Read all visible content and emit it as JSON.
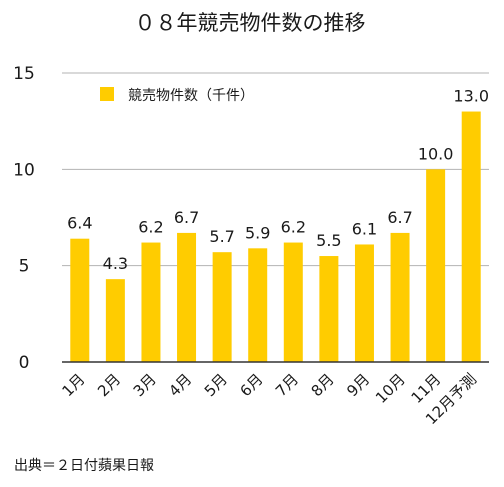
{
  "colors": {
    "bar": "#FFCC00",
    "grid": "#b3b3b3",
    "axis": "#333333",
    "text": "#1a1a1a"
  },
  "chart_data": {
    "type": "bar",
    "title": "０８年競売物件数の推移",
    "xlabel": "",
    "ylabel": "",
    "categories": [
      "1月",
      "2月",
      "3月",
      "4月",
      "5月",
      "6月",
      "7月",
      "8月",
      "9月",
      "10月",
      "11月",
      "12月予測"
    ],
    "series": [
      {
        "name": "競売物件数（千件）",
        "values": [
          6.4,
          4.3,
          6.2,
          6.7,
          5.7,
          5.9,
          6.2,
          5.5,
          6.1,
          6.7,
          10.0,
          13.0
        ],
        "labels": [
          "6.4",
          "4.3",
          "6.2",
          "6.7",
          "5.7",
          "5.9",
          "6.2",
          "5.5",
          "6.1",
          "6.7",
          "10.0",
          "13.0"
        ]
      }
    ],
    "ylim": [
      0,
      15
    ],
    "yticks": [
      0,
      5,
      10,
      15
    ],
    "ytick_labels": [
      "0",
      "5",
      "10",
      "15"
    ],
    "grid": true,
    "legend_position": "top-left",
    "source": "出典＝２日付蘋果日報"
  }
}
